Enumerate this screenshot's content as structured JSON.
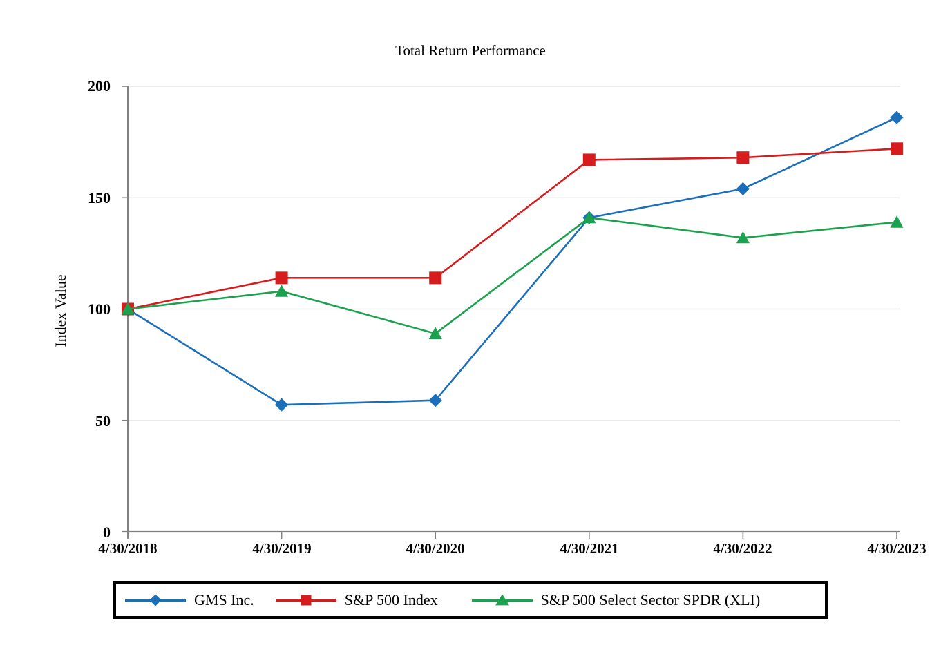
{
  "chart_data": {
    "type": "line",
    "title": "Total Return Performance",
    "xlabel": "",
    "ylabel": "Index Value",
    "categories": [
      "4/30/2018",
      "4/30/2019",
      "4/30/2020",
      "4/30/2021",
      "4/30/2022",
      "4/30/2023"
    ],
    "y_ticks": [
      200,
      150,
      100,
      50,
      0
    ],
    "ylim": [
      0,
      200
    ],
    "grid": "horizontal-only",
    "legend_position": "bottom-boxed",
    "series": [
      {
        "id": "gms",
        "name": "GMS Inc.",
        "marker": "diamond",
        "color": "#1b6fba",
        "values": [
          100,
          57,
          59,
          141,
          154,
          186
        ]
      },
      {
        "id": "sp500",
        "name": "S&P 500 Index",
        "marker": "square",
        "color": "#d61c1c",
        "values": [
          100,
          114,
          114,
          167,
          168,
          172
        ]
      },
      {
        "id": "xli",
        "name": "S&P 500 Select Sector SPDR (XLI)",
        "marker": "triangle",
        "color": "#1ca24f",
        "values": [
          100,
          108,
          89,
          141,
          132,
          139
        ]
      }
    ],
    "colors": {
      "axis": "#808080",
      "grid": "#e9e9e9",
      "text": "#000000",
      "legend_border": "#000000"
    }
  }
}
